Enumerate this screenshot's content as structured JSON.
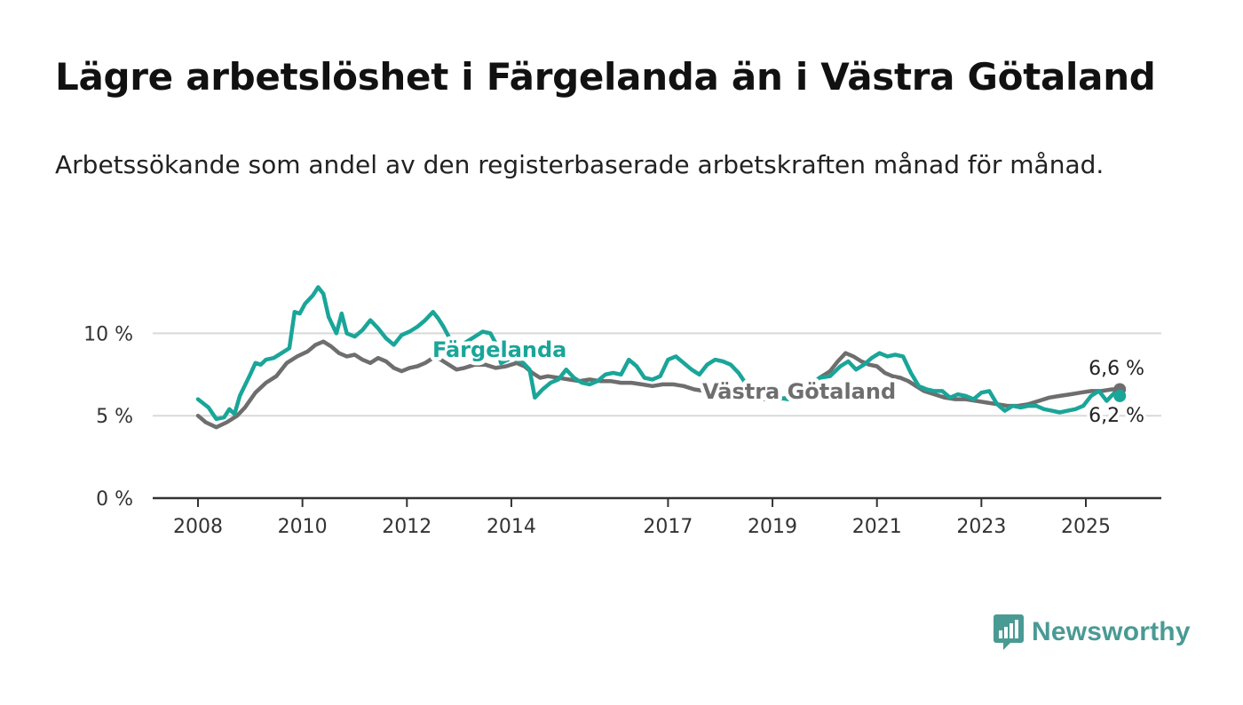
{
  "title": "Lägre arbetslöshet i Färgelanda än i Västra Götaland",
  "subtitle": "Arbetssökande som andel av den registerbaserade arbetskraften månad för månad.",
  "brand": "Newsworthy",
  "colors": {
    "fargelanda": "#1aa599",
    "vastra": "#6e6e6e",
    "brand": "#4a9a94",
    "axis": "#333333",
    "grid": "#d9d9d9"
  },
  "chart_data": {
    "type": "line",
    "x_ticks": [
      "2008",
      "2010",
      "2012",
      "2014",
      "2017",
      "2019",
      "2021",
      "2023",
      "2025"
    ],
    "y_ticks": [
      "0 %",
      "5 %",
      "10 %"
    ],
    "ylim": [
      0,
      14
    ],
    "grid": true,
    "series": [
      {
        "name": "Färgelanda",
        "color": "#1aa599",
        "end_label": "6,2 %",
        "points": [
          [
            2008.0,
            6.0
          ],
          [
            2008.2,
            5.5
          ],
          [
            2008.35,
            4.8
          ],
          [
            2008.5,
            4.9
          ],
          [
            2008.6,
            5.4
          ],
          [
            2008.7,
            5.1
          ],
          [
            2008.8,
            6.2
          ],
          [
            2009.0,
            7.5
          ],
          [
            2009.1,
            8.2
          ],
          [
            2009.2,
            8.1
          ],
          [
            2009.3,
            8.4
          ],
          [
            2009.45,
            8.5
          ],
          [
            2009.6,
            8.8
          ],
          [
            2009.75,
            9.1
          ],
          [
            2009.85,
            11.3
          ],
          [
            2009.95,
            11.2
          ],
          [
            2010.05,
            11.8
          ],
          [
            2010.2,
            12.3
          ],
          [
            2010.3,
            12.8
          ],
          [
            2010.4,
            12.4
          ],
          [
            2010.5,
            11.0
          ],
          [
            2010.65,
            10.0
          ],
          [
            2010.75,
            11.2
          ],
          [
            2010.85,
            10.0
          ],
          [
            2011.0,
            9.8
          ],
          [
            2011.15,
            10.2
          ],
          [
            2011.3,
            10.8
          ],
          [
            2011.45,
            10.3
          ],
          [
            2011.6,
            9.7
          ],
          [
            2011.75,
            9.3
          ],
          [
            2011.9,
            9.9
          ],
          [
            2012.05,
            10.1
          ],
          [
            2012.2,
            10.4
          ],
          [
            2012.35,
            10.8
          ],
          [
            2012.5,
            11.3
          ],
          [
            2012.6,
            10.9
          ],
          [
            2012.7,
            10.4
          ],
          [
            2012.8,
            9.8
          ],
          [
            2012.95,
            9.1
          ],
          [
            2013.1,
            9.4
          ],
          [
            2013.3,
            9.8
          ],
          [
            2013.45,
            10.1
          ],
          [
            2013.6,
            10.0
          ],
          [
            2013.7,
            9.4
          ],
          [
            2013.8,
            8.2
          ],
          [
            2014.0,
            8.5
          ],
          [
            2014.2,
            8.3
          ],
          [
            2014.35,
            7.8
          ],
          [
            2014.45,
            6.1
          ],
          [
            2014.6,
            6.6
          ],
          [
            2014.75,
            7.0
          ],
          [
            2014.9,
            7.2
          ],
          [
            2015.05,
            7.8
          ],
          [
            2015.2,
            7.3
          ],
          [
            2015.35,
            7.0
          ],
          [
            2015.5,
            6.9
          ],
          [
            2015.65,
            7.1
          ],
          [
            2015.8,
            7.5
          ],
          [
            2015.95,
            7.6
          ],
          [
            2016.1,
            7.5
          ],
          [
            2016.25,
            8.4
          ],
          [
            2016.4,
            8.0
          ],
          [
            2016.55,
            7.3
          ],
          [
            2016.7,
            7.2
          ],
          [
            2016.85,
            7.4
          ],
          [
            2017.0,
            8.4
          ],
          [
            2017.15,
            8.6
          ],
          [
            2017.3,
            8.2
          ],
          [
            2017.45,
            7.8
          ],
          [
            2017.6,
            7.5
          ],
          [
            2017.75,
            8.1
          ],
          [
            2017.9,
            8.4
          ],
          [
            2018.05,
            8.3
          ],
          [
            2018.2,
            8.1
          ],
          [
            2018.35,
            7.6
          ],
          [
            2018.5,
            6.9
          ],
          [
            2018.7,
            6.5
          ],
          [
            2018.9,
            6.3
          ],
          [
            2019.1,
            6.1
          ],
          [
            2019.3,
            6.0
          ],
          [
            2019.5,
            6.2
          ],
          [
            2019.7,
            6.6
          ],
          [
            2019.9,
            7.3
          ],
          [
            2020.1,
            7.4
          ],
          [
            2020.3,
            8.0
          ],
          [
            2020.45,
            8.3
          ],
          [
            2020.6,
            7.8
          ],
          [
            2020.75,
            8.1
          ],
          [
            2020.9,
            8.5
          ],
          [
            2021.05,
            8.8
          ],
          [
            2021.2,
            8.6
          ],
          [
            2021.35,
            8.7
          ],
          [
            2021.5,
            8.6
          ],
          [
            2021.65,
            7.6
          ],
          [
            2021.8,
            6.8
          ],
          [
            2021.95,
            6.6
          ],
          [
            2022.1,
            6.5
          ],
          [
            2022.25,
            6.5
          ],
          [
            2022.4,
            6.1
          ],
          [
            2022.55,
            6.3
          ],
          [
            2022.7,
            6.2
          ],
          [
            2022.85,
            6.0
          ],
          [
            2023.0,
            6.4
          ],
          [
            2023.15,
            6.5
          ],
          [
            2023.3,
            5.7
          ],
          [
            2023.45,
            5.3
          ],
          [
            2023.6,
            5.6
          ],
          [
            2023.75,
            5.5
          ],
          [
            2023.9,
            5.6
          ],
          [
            2024.05,
            5.6
          ],
          [
            2024.2,
            5.4
          ],
          [
            2024.35,
            5.3
          ],
          [
            2024.5,
            5.2
          ],
          [
            2024.65,
            5.3
          ],
          [
            2024.8,
            5.4
          ],
          [
            2024.95,
            5.6
          ],
          [
            2025.1,
            6.2
          ],
          [
            2025.25,
            6.5
          ],
          [
            2025.4,
            5.9
          ],
          [
            2025.55,
            6.4
          ],
          [
            2025.65,
            6.2
          ]
        ]
      },
      {
        "name": "Västra Götaland",
        "color": "#6e6e6e",
        "end_label": "6,6 %",
        "points": [
          [
            2008.0,
            5.0
          ],
          [
            2008.15,
            4.6
          ],
          [
            2008.35,
            4.3
          ],
          [
            2008.55,
            4.6
          ],
          [
            2008.75,
            5.0
          ],
          [
            2008.9,
            5.5
          ],
          [
            2009.1,
            6.4
          ],
          [
            2009.3,
            7.0
          ],
          [
            2009.5,
            7.4
          ],
          [
            2009.7,
            8.2
          ],
          [
            2009.9,
            8.6
          ],
          [
            2010.1,
            8.9
          ],
          [
            2010.25,
            9.3
          ],
          [
            2010.4,
            9.5
          ],
          [
            2010.55,
            9.2
          ],
          [
            2010.7,
            8.8
          ],
          [
            2010.85,
            8.6
          ],
          [
            2011.0,
            8.7
          ],
          [
            2011.15,
            8.4
          ],
          [
            2011.3,
            8.2
          ],
          [
            2011.45,
            8.5
          ],
          [
            2011.6,
            8.3
          ],
          [
            2011.75,
            7.9
          ],
          [
            2011.9,
            7.7
          ],
          [
            2012.05,
            7.9
          ],
          [
            2012.2,
            8.0
          ],
          [
            2012.35,
            8.2
          ],
          [
            2012.5,
            8.5
          ],
          [
            2012.65,
            8.4
          ],
          [
            2012.8,
            8.1
          ],
          [
            2012.95,
            7.8
          ],
          [
            2013.1,
            7.9
          ],
          [
            2013.3,
            8.1
          ],
          [
            2013.5,
            8.1
          ],
          [
            2013.7,
            7.9
          ],
          [
            2013.9,
            8.0
          ],
          [
            2014.1,
            8.2
          ],
          [
            2014.25,
            8.0
          ],
          [
            2014.4,
            7.6
          ],
          [
            2014.55,
            7.3
          ],
          [
            2014.7,
            7.4
          ],
          [
            2014.9,
            7.3
          ],
          [
            2015.1,
            7.2
          ],
          [
            2015.3,
            7.1
          ],
          [
            2015.5,
            7.2
          ],
          [
            2015.7,
            7.1
          ],
          [
            2015.9,
            7.1
          ],
          [
            2016.1,
            7.0
          ],
          [
            2016.3,
            7.0
          ],
          [
            2016.5,
            6.9
          ],
          [
            2016.7,
            6.8
          ],
          [
            2016.9,
            6.9
          ],
          [
            2017.1,
            6.9
          ],
          [
            2017.3,
            6.8
          ],
          [
            2017.5,
            6.6
          ],
          [
            2017.7,
            6.5
          ],
          [
            2017.9,
            6.4
          ],
          [
            2018.1,
            6.3
          ],
          [
            2018.3,
            6.2
          ],
          [
            2018.5,
            6.1
          ],
          [
            2018.7,
            6.0
          ],
          [
            2018.9,
            6.0
          ],
          [
            2019.1,
            6.0
          ],
          [
            2019.3,
            6.1
          ],
          [
            2019.5,
            6.4
          ],
          [
            2019.7,
            6.8
          ],
          [
            2019.9,
            7.3
          ],
          [
            2020.1,
            7.7
          ],
          [
            2020.25,
            8.3
          ],
          [
            2020.4,
            8.8
          ],
          [
            2020.55,
            8.6
          ],
          [
            2020.7,
            8.3
          ],
          [
            2020.85,
            8.1
          ],
          [
            2021.0,
            8.0
          ],
          [
            2021.15,
            7.6
          ],
          [
            2021.3,
            7.4
          ],
          [
            2021.45,
            7.3
          ],
          [
            2021.6,
            7.1
          ],
          [
            2021.75,
            6.8
          ],
          [
            2021.9,
            6.5
          ],
          [
            2022.1,
            6.3
          ],
          [
            2022.3,
            6.1
          ],
          [
            2022.5,
            6.0
          ],
          [
            2022.7,
            6.0
          ],
          [
            2022.9,
            5.9
          ],
          [
            2023.1,
            5.8
          ],
          [
            2023.3,
            5.7
          ],
          [
            2023.5,
            5.6
          ],
          [
            2023.7,
            5.6
          ],
          [
            2023.9,
            5.7
          ],
          [
            2024.1,
            5.9
          ],
          [
            2024.3,
            6.1
          ],
          [
            2024.5,
            6.2
          ],
          [
            2024.7,
            6.3
          ],
          [
            2024.9,
            6.4
          ],
          [
            2025.1,
            6.5
          ],
          [
            2025.3,
            6.5
          ],
          [
            2025.5,
            6.6
          ],
          [
            2025.65,
            6.6
          ]
        ]
      }
    ]
  }
}
